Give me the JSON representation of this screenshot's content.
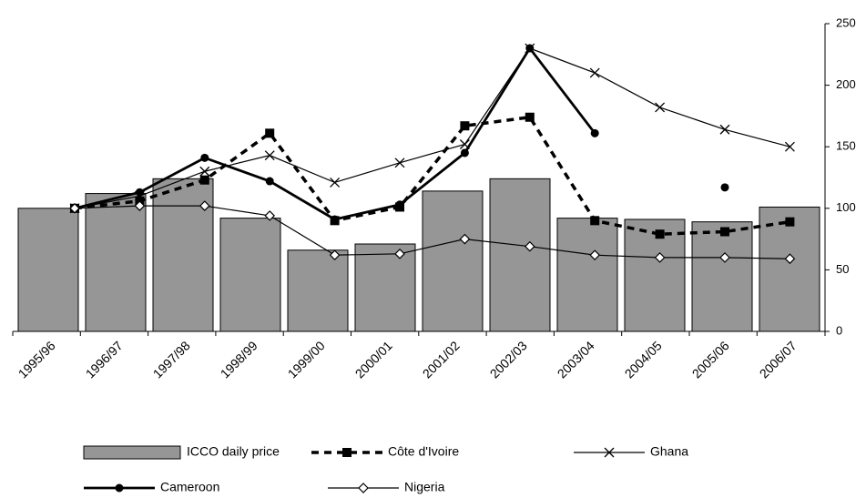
{
  "chart_data": {
    "type": "bar-line",
    "categories": [
      "1995/96",
      "1996/97",
      "1997/98",
      "1998/99",
      "1999/00",
      "2000/01",
      "2001/02",
      "2002/03",
      "2003/04",
      "2004/05",
      "2005/06",
      "2006/07"
    ],
    "ylim": [
      0,
      250
    ],
    "yticks": [
      0,
      50,
      100,
      150,
      200,
      250
    ],
    "yaxis_position": "right",
    "series": [
      {
        "name": "ICCO daily price",
        "type": "bar",
        "color": "#969696",
        "values": [
          100,
          112,
          124,
          92,
          66,
          71,
          114,
          124,
          92,
          91,
          89,
          101
        ]
      },
      {
        "name": "Côte d'Ivoire",
        "type": "line",
        "dash": true,
        "marker": "square",
        "color": "#000000",
        "values": [
          100,
          106,
          123,
          161,
          90,
          101,
          167,
          174,
          90,
          79,
          81,
          89
        ]
      },
      {
        "name": "Ghana",
        "type": "line",
        "marker": "x",
        "color": "#000000",
        "values": [
          100,
          110,
          130,
          143,
          121,
          137,
          152,
          230,
          210,
          182,
          164,
          150
        ]
      },
      {
        "name": "Cameroon",
        "type": "line",
        "marker": "circle",
        "bold": true,
        "color": "#000000",
        "values": [
          100,
          113,
          141,
          122,
          91,
          103,
          145,
          230,
          161,
          null,
          117,
          null
        ]
      },
      {
        "name": "Nigeria",
        "type": "line",
        "marker": "diamond",
        "color": "#000000",
        "values": [
          100,
          102,
          102,
          94,
          62,
          63,
          75,
          69,
          62,
          60,
          60,
          59
        ]
      }
    ]
  }
}
